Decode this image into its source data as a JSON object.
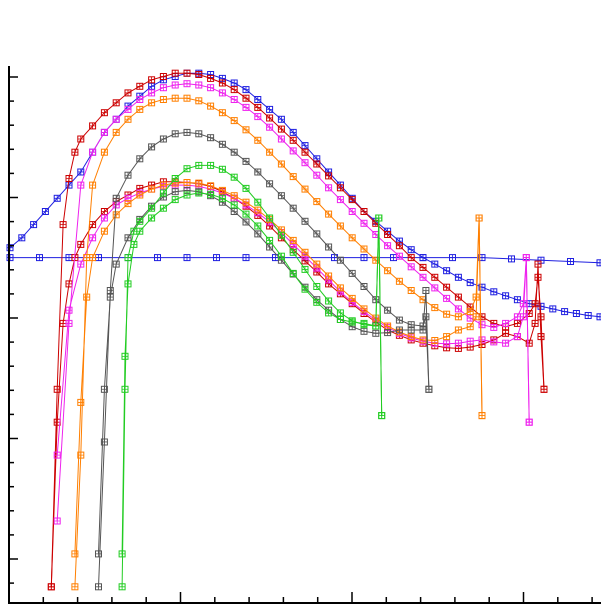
{
  "chart_data": {
    "type": "line",
    "marker": "square-with-cross",
    "title": "",
    "xlabel": "",
    "ylabel": "",
    "x_tick_labels": [],
    "y_tick_labels": [],
    "legend": "none",
    "grid": false,
    "xlim": [
      0,
      100
    ],
    "ylim": [
      -0.52,
      0.3
    ],
    "series": [
      {
        "color": "#1f1fe0",
        "x": [
          0,
          2,
          4,
          6,
          8,
          10,
          12,
          14,
          16,
          18,
          20,
          22,
          24,
          26,
          28,
          30,
          32,
          34,
          36,
          38,
          40,
          42,
          44,
          46,
          48,
          50,
          52,
          54,
          56,
          58,
          60,
          62,
          64,
          66,
          68,
          70,
          72,
          74,
          76,
          78,
          80,
          82,
          84,
          86,
          88,
          90,
          92,
          94,
          96,
          98,
          100
        ],
        "y": [
          0.015,
          0.03,
          0.05,
          0.07,
          0.09,
          0.11,
          0.13,
          0.16,
          0.19,
          0.21,
          0.23,
          0.245,
          0.26,
          0.27,
          0.275,
          0.28,
          0.28,
          0.278,
          0.272,
          0.265,
          0.255,
          0.24,
          0.225,
          0.21,
          0.19,
          0.17,
          0.15,
          0.13,
          0.11,
          0.09,
          0.07,
          0.055,
          0.04,
          0.025,
          0.012,
          0.0,
          -0.01,
          -0.02,
          -0.03,
          -0.038,
          -0.045,
          -0.052,
          -0.058,
          -0.064,
          -0.07,
          -0.074,
          -0.078,
          -0.082,
          -0.085,
          -0.088,
          -0.09
        ]
      },
      {
        "color": "#1f1fe0",
        "x": [
          0,
          5,
          10,
          15,
          20,
          25,
          30,
          35,
          40,
          45,
          50,
          55,
          60,
          65,
          70,
          75,
          80,
          85,
          90,
          95,
          100
        ],
        "y": [
          0.0,
          0.0,
          0.0,
          0.0,
          0.0,
          0.0,
          0.0,
          0.0,
          0.0,
          0.0,
          0.0,
          0.0,
          0.0,
          0.0,
          0.0,
          0.0,
          0.0,
          -0.002,
          -0.004,
          -0.006,
          -0.008
        ]
      },
      {
        "color": "#cc0000",
        "x": [
          7,
          8,
          9,
          10,
          11,
          12,
          14,
          16,
          18,
          20,
          22,
          24,
          26,
          28,
          30,
          32,
          34,
          36,
          38,
          40,
          42,
          44,
          46,
          48,
          50,
          52,
          54,
          56,
          58,
          60,
          62,
          64,
          66,
          68,
          70,
          72,
          74,
          76,
          78,
          80,
          82,
          84,
          86,
          88,
          89,
          89.5,
          90,
          90.5
        ],
        "y": [
          -0.5,
          -0.2,
          0.05,
          0.12,
          0.16,
          0.18,
          0.2,
          0.22,
          0.235,
          0.25,
          0.26,
          0.27,
          0.275,
          0.28,
          0.28,
          0.278,
          0.272,
          0.265,
          0.255,
          0.242,
          0.228,
          0.212,
          0.195,
          0.178,
          0.16,
          0.142,
          0.124,
          0.106,
          0.088,
          0.07,
          0.052,
          0.035,
          0.018,
          0.0,
          -0.015,
          -0.03,
          -0.045,
          -0.06,
          -0.075,
          -0.09,
          -0.1,
          -0.105,
          -0.1,
          -0.085,
          -0.07,
          -0.03,
          -0.09,
          -0.2
        ]
      },
      {
        "color": "#cc0000",
        "x": [
          7,
          8,
          9,
          10,
          11,
          12,
          14,
          16,
          18,
          20,
          22,
          24,
          26,
          28,
          30,
          32,
          34,
          36,
          38,
          40,
          42,
          44,
          46,
          48,
          50,
          52,
          54,
          56,
          58,
          60,
          62,
          64,
          66,
          68,
          70,
          72,
          74,
          76,
          78,
          80,
          82,
          84,
          86,
          88,
          89,
          89.5,
          90,
          90.5
        ],
        "y": [
          -0.5,
          -0.25,
          -0.1,
          -0.04,
          0.0,
          0.02,
          0.05,
          0.07,
          0.085,
          0.095,
          0.105,
          0.11,
          0.115,
          0.115,
          0.114,
          0.112,
          0.108,
          0.1,
          0.09,
          0.078,
          0.064,
          0.048,
          0.03,
          0.012,
          -0.005,
          -0.022,
          -0.04,
          -0.055,
          -0.07,
          -0.085,
          -0.098,
          -0.11,
          -0.118,
          -0.125,
          -0.13,
          -0.134,
          -0.137,
          -0.138,
          -0.136,
          -0.132,
          -0.125,
          -0.115,
          -0.12,
          -0.13,
          -0.1,
          -0.01,
          -0.12,
          -0.2
        ]
      },
      {
        "color": "#ee22ee",
        "x": [
          8,
          10,
          12,
          14,
          16,
          18,
          20,
          22,
          24,
          26,
          28,
          30,
          32,
          34,
          36,
          38,
          40,
          42,
          44,
          46,
          48,
          50,
          52,
          54,
          56,
          58,
          60,
          62,
          64,
          66,
          68,
          70,
          72,
          74,
          76,
          78,
          80,
          82,
          84,
          86,
          87,
          87.5,
          88
        ],
        "y": [
          -0.4,
          -0.1,
          0.11,
          0.16,
          0.19,
          0.21,
          0.225,
          0.24,
          0.25,
          0.258,
          0.262,
          0.264,
          0.262,
          0.258,
          0.25,
          0.24,
          0.228,
          0.214,
          0.198,
          0.18,
          0.162,
          0.144,
          0.125,
          0.106,
          0.088,
          0.07,
          0.052,
          0.035,
          0.018,
          0.002,
          -0.014,
          -0.03,
          -0.046,
          -0.062,
          -0.078,
          -0.092,
          -0.102,
          -0.106,
          -0.1,
          -0.09,
          -0.07,
          0.0,
          -0.25
        ]
      },
      {
        "color": "#ee22ee",
        "x": [
          8,
          10,
          12,
          14,
          16,
          18,
          20,
          22,
          24,
          26,
          28,
          30,
          32,
          34,
          36,
          38,
          40,
          42,
          44,
          46,
          48,
          50,
          52,
          54,
          56,
          58,
          60,
          62,
          64,
          66,
          68,
          70,
          72,
          74,
          76,
          78,
          80,
          82,
          84,
          86,
          87,
          87.5,
          88
        ],
        "y": [
          -0.3,
          -0.08,
          -0.01,
          0.03,
          0.06,
          0.08,
          0.09,
          0.098,
          0.104,
          0.108,
          0.11,
          0.11,
          0.108,
          0.104,
          0.098,
          0.09,
          0.08,
          0.068,
          0.054,
          0.038,
          0.02,
          0.002,
          -0.016,
          -0.034,
          -0.052,
          -0.068,
          -0.082,
          -0.095,
          -0.106,
          -0.115,
          -0.122,
          -0.127,
          -0.13,
          -0.131,
          -0.13,
          -0.127,
          -0.125,
          -0.128,
          -0.13,
          -0.12,
          -0.09,
          0.0,
          -0.25
        ]
      },
      {
        "color": "#ff7f00",
        "x": [
          11,
          12,
          13,
          14,
          16,
          18,
          20,
          22,
          24,
          26,
          28,
          30,
          32,
          34,
          36,
          38,
          40,
          42,
          44,
          46,
          48,
          50,
          52,
          54,
          56,
          58,
          60,
          62,
          64,
          66,
          68,
          70,
          72,
          74,
          76,
          78,
          79,
          79.5,
          80
        ],
        "y": [
          -0.5,
          -0.3,
          0.0,
          0.11,
          0.16,
          0.19,
          0.21,
          0.225,
          0.235,
          0.24,
          0.242,
          0.242,
          0.238,
          0.23,
          0.22,
          0.208,
          0.194,
          0.178,
          0.16,
          0.142,
          0.123,
          0.104,
          0.085,
          0.066,
          0.048,
          0.03,
          0.013,
          -0.004,
          -0.02,
          -0.036,
          -0.05,
          -0.064,
          -0.076,
          -0.086,
          -0.09,
          -0.082,
          -0.06,
          0.06,
          -0.24
        ]
      },
      {
        "color": "#ff7f00",
        "x": [
          11,
          12,
          13,
          14,
          16,
          18,
          20,
          22,
          24,
          26,
          28,
          30,
          32,
          34,
          36,
          38,
          40,
          42,
          44,
          46,
          48,
          50,
          52,
          54,
          56,
          58,
          60,
          62,
          64,
          66,
          68,
          70,
          72,
          74,
          76,
          78,
          79,
          79.5,
          80
        ],
        "y": [
          -0.45,
          -0.22,
          -0.06,
          0.0,
          0.04,
          0.065,
          0.082,
          0.095,
          0.104,
          0.11,
          0.113,
          0.114,
          0.113,
          0.109,
          0.102,
          0.094,
          0.084,
          0.072,
          0.058,
          0.042,
          0.026,
          0.008,
          -0.01,
          -0.028,
          -0.046,
          -0.062,
          -0.078,
          -0.092,
          -0.104,
          -0.113,
          -0.12,
          -0.125,
          -0.126,
          -0.12,
          -0.11,
          -0.105,
          -0.09,
          0.06,
          -0.24
        ]
      },
      {
        "color": "#555555",
        "x": [
          15,
          16,
          17,
          18,
          20,
          22,
          24,
          26,
          28,
          30,
          32,
          34,
          36,
          38,
          40,
          42,
          44,
          46,
          48,
          50,
          52,
          54,
          56,
          58,
          60,
          62,
          64,
          66,
          68,
          70,
          70.5,
          71
        ],
        "y": [
          -0.5,
          -0.28,
          -0.05,
          0.09,
          0.125,
          0.15,
          0.168,
          0.18,
          0.188,
          0.19,
          0.188,
          0.182,
          0.172,
          0.16,
          0.146,
          0.13,
          0.112,
          0.094,
          0.075,
          0.055,
          0.036,
          0.016,
          -0.004,
          -0.024,
          -0.044,
          -0.064,
          -0.08,
          -0.095,
          -0.102,
          -0.104,
          -0.09,
          -0.2
        ]
      },
      {
        "color": "#555555",
        "x": [
          15,
          16,
          17,
          18,
          20,
          22,
          24,
          26,
          28,
          30,
          32,
          34,
          36,
          38,
          40,
          42,
          44,
          46,
          48,
          50,
          52,
          54,
          56,
          58,
          60,
          62,
          64,
          66,
          68,
          70,
          70.5,
          71
        ],
        "y": [
          -0.45,
          -0.2,
          -0.06,
          -0.01,
          0.03,
          0.058,
          0.078,
          0.092,
          0.1,
          0.102,
          0.1,
          0.094,
          0.084,
          0.07,
          0.054,
          0.036,
          0.016,
          -0.004,
          -0.025,
          -0.045,
          -0.064,
          -0.08,
          -0.094,
          -0.105,
          -0.112,
          -0.115,
          -0.114,
          -0.11,
          -0.11,
          -0.11,
          -0.05,
          -0.2
        ]
      },
      {
        "color": "#22cc22",
        "x": [
          19,
          19.5,
          20,
          21,
          22,
          24,
          26,
          28,
          30,
          32,
          34,
          36,
          38,
          40,
          42,
          44,
          46,
          48,
          50,
          52,
          54,
          56,
          58,
          60,
          62,
          62.5,
          63
        ],
        "y": [
          -0.5,
          -0.2,
          0.0,
          0.04,
          0.055,
          0.075,
          0.098,
          0.12,
          0.135,
          0.14,
          0.14,
          0.134,
          0.122,
          0.105,
          0.084,
          0.06,
          0.034,
          0.008,
          -0.018,
          -0.044,
          -0.066,
          -0.084,
          -0.096,
          -0.102,
          -0.104,
          0.06,
          -0.24
        ]
      },
      {
        "color": "#22cc22",
        "x": [
          19,
          19.5,
          20,
          21,
          22,
          24,
          26,
          28,
          30,
          32,
          34,
          36,
          38,
          40,
          42,
          44,
          46,
          48,
          50,
          52,
          54,
          56,
          58,
          60,
          62,
          62.5,
          63
        ],
        "y": [
          -0.45,
          -0.15,
          -0.04,
          0.02,
          0.04,
          0.06,
          0.075,
          0.088,
          0.095,
          0.098,
          0.096,
          0.09,
          0.08,
          0.066,
          0.048,
          0.026,
          0.002,
          -0.024,
          -0.048,
          -0.068,
          -0.084,
          -0.094,
          -0.098,
          -0.1,
          -0.104,
          0.06,
          -0.24
        ]
      }
    ]
  }
}
